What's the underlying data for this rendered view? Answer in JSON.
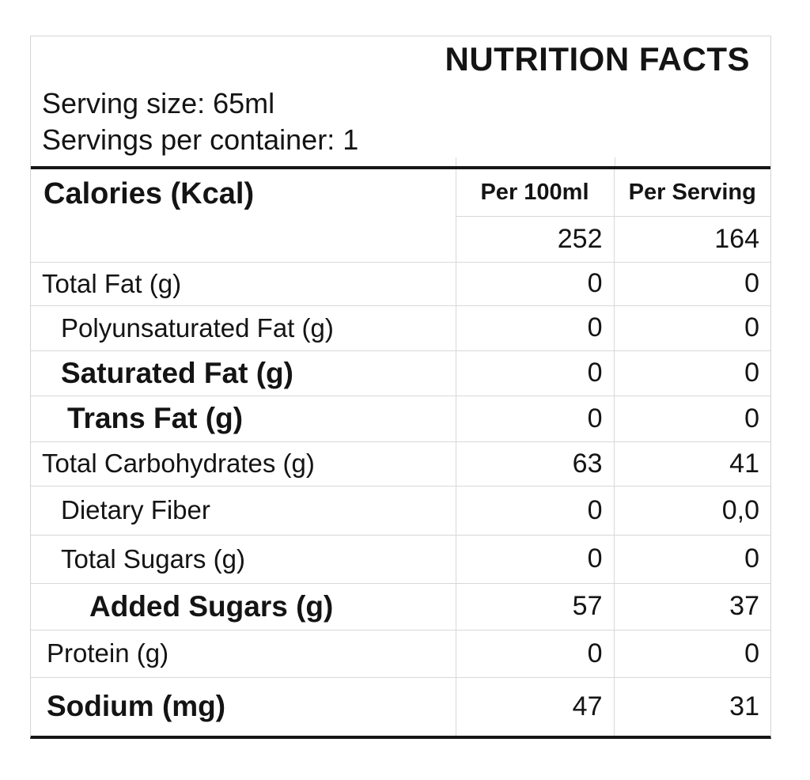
{
  "header": {
    "title": "NUTRITION FACTS",
    "serving_size": "Serving size: 65ml",
    "servings_per_container": "Servings per container: 1"
  },
  "table": {
    "col_headers": [
      "Per 100ml",
      "Per Serving"
    ],
    "calories": {
      "label": "Calories (Kcal)",
      "per_100ml": "252",
      "per_serving": "164"
    },
    "rows": [
      {
        "label": "Total Fat (g)",
        "per_100ml": "0",
        "per_serving": "0",
        "bold": false,
        "indent": 0
      },
      {
        "label": "Polyunsaturated Fat (g)",
        "per_100ml": "0",
        "per_serving": "0",
        "bold": false,
        "indent": 2
      },
      {
        "label": "Saturated Fat (g)",
        "per_100ml": "0",
        "per_serving": "0",
        "bold": true,
        "indent": 2
      },
      {
        "label": "Trans Fat (g)",
        "per_100ml": "0",
        "per_serving": "0",
        "bold": true,
        "indent": 3
      },
      {
        "label": "Total Carbohydrates (g)",
        "per_100ml": "63",
        "per_serving": "41",
        "bold": false,
        "indent": 0
      },
      {
        "label": "Dietary Fiber",
        "per_100ml": "0",
        "per_serving": "0,0",
        "bold": false,
        "indent": 2
      },
      {
        "label": "Total Sugars (g)",
        "per_100ml": "0",
        "per_serving": "0",
        "bold": false,
        "indent": 2
      },
      {
        "label": "Added Sugars (g)",
        "per_100ml": "57",
        "per_serving": "37",
        "bold": true,
        "indent": 4
      },
      {
        "label": "Protein (g)",
        "per_100ml": "0",
        "per_serving": "0",
        "bold": false,
        "indent": 1
      },
      {
        "label": "Sodium (mg)",
        "per_100ml": "47",
        "per_serving": "31",
        "bold": true,
        "indent": 1
      }
    ]
  },
  "colors": {
    "rule": "#161616",
    "grid": "#d8d8d8",
    "text": "#141414"
  }
}
